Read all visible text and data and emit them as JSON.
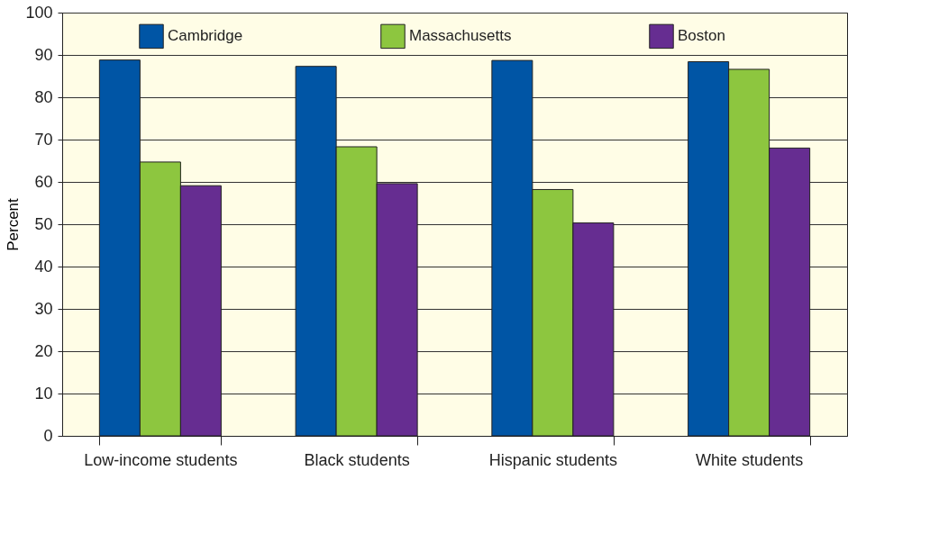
{
  "chart_data": {
    "type": "bar",
    "ylabel": "Percent",
    "categories": [
      "Low-income students",
      "Black students",
      "Hispanic students",
      "White students"
    ],
    "series": [
      {
        "name": "Cambridge",
        "color": "#0055a5",
        "values": [
          88.8,
          87.3,
          88.7,
          88.4
        ]
      },
      {
        "name": "Massachusetts",
        "color": "#8dc63f",
        "values": [
          64.7,
          68.3,
          58.2,
          86.6
        ]
      },
      {
        "name": "Boston",
        "color": "#662d91",
        "values": [
          59.1,
          59.6,
          50.3,
          68.0
        ]
      }
    ],
    "ylim": [
      0,
      100
    ],
    "yticks": [
      0,
      10,
      20,
      30,
      40,
      50,
      60,
      70,
      80,
      90,
      100
    ],
    "grid": "y",
    "legend": "top"
  }
}
